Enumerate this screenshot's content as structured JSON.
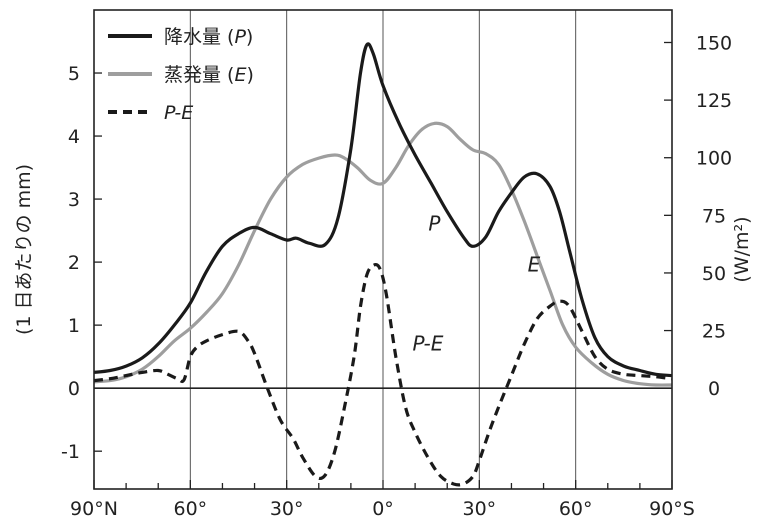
{
  "chart_data": {
    "type": "line",
    "xlabel": "",
    "ylabel_left": "(1 日あたりの mm)",
    "ylabel_right": "(W/m²)",
    "xlim": [
      -90,
      90
    ],
    "ylim_left": [
      -1.6,
      6.0
    ],
    "ylim_right": [
      -43.75,
      164.1
    ],
    "x_ticks": [
      -90,
      -60,
      -30,
      0,
      30,
      60,
      90
    ],
    "x_tick_labels": [
      "90°N",
      "60°",
      "30°",
      "0°",
      "30°",
      "60°",
      "90°S"
    ],
    "y_ticks_left": [
      -1,
      0,
      1,
      2,
      3,
      4,
      5
    ],
    "y_tick_labels_left": [
      "-1",
      "0",
      "1",
      "2",
      "3",
      "4",
      "5"
    ],
    "y_ticks_right": [
      0,
      25,
      50,
      75,
      100,
      125,
      150
    ],
    "y_tick_labels_right": [
      "0",
      "25",
      "50",
      "75",
      "100",
      "125",
      "150"
    ],
    "grid_vertical": [
      -60,
      -30,
      0,
      30,
      60
    ],
    "legend_position": "top-left",
    "series": [
      {
        "name": "降水量 (P)",
        "label_parts": [
          "降水量 (",
          "P",
          ")"
        ],
        "style": "solid",
        "color": "#1a1a1a",
        "annotation": "P",
        "annotation_at": [
          16,
          2.5
        ],
        "x": [
          -90,
          -85,
          -80,
          -75,
          -70,
          -65,
          -60,
          -55,
          -50,
          -45,
          -40,
          -35,
          -30,
          -27,
          -23,
          -18,
          -14,
          -10,
          -7,
          -5,
          -3,
          0,
          5,
          10,
          15,
          20,
          25,
          28,
          32,
          36,
          40,
          44,
          48,
          52,
          55,
          58,
          62,
          66,
          70,
          75,
          80,
          85,
          90
        ],
        "y": [
          0.25,
          0.28,
          0.35,
          0.48,
          0.7,
          1.0,
          1.35,
          1.85,
          2.25,
          2.45,
          2.55,
          2.45,
          2.35,
          2.38,
          2.3,
          2.28,
          2.7,
          3.8,
          5.0,
          5.45,
          5.3,
          4.8,
          4.2,
          3.7,
          3.25,
          2.8,
          2.4,
          2.25,
          2.4,
          2.8,
          3.1,
          3.35,
          3.4,
          3.2,
          2.8,
          2.2,
          1.4,
          0.8,
          0.5,
          0.35,
          0.28,
          0.22,
          0.2
        ]
      },
      {
        "name": "蒸発量 (E)",
        "label_parts": [
          "蒸発量 (",
          "E",
          ")"
        ],
        "style": "solid",
        "color": "#9e9e9e",
        "annotation": "E",
        "annotation_at": [
          47,
          1.85
        ],
        "x": [
          -90,
          -85,
          -80,
          -75,
          -70,
          -65,
          -60,
          -55,
          -50,
          -45,
          -40,
          -35,
          -30,
          -25,
          -20,
          -15,
          -12,
          -8,
          -4,
          0,
          4,
          8,
          12,
          16,
          20,
          24,
          28,
          32,
          36,
          40,
          44,
          48,
          52,
          56,
          60,
          65,
          70,
          75,
          80,
          85,
          90
        ],
        "y": [
          0.1,
          0.12,
          0.18,
          0.3,
          0.5,
          0.75,
          0.95,
          1.2,
          1.5,
          1.95,
          2.5,
          3.0,
          3.35,
          3.55,
          3.65,
          3.7,
          3.65,
          3.5,
          3.3,
          3.25,
          3.5,
          3.85,
          4.1,
          4.2,
          4.15,
          3.95,
          3.78,
          3.72,
          3.55,
          3.15,
          2.65,
          2.1,
          1.55,
          1.0,
          0.65,
          0.4,
          0.22,
          0.12,
          0.07,
          0.05,
          0.05
        ]
      },
      {
        "name": "P-E",
        "label_parts": [
          "",
          "P-E",
          ""
        ],
        "style": "dashed",
        "color": "#1a1a1a",
        "annotation": "P-E",
        "annotation_at": [
          14,
          0.6
        ],
        "x": [
          -90,
          -85,
          -80,
          -75,
          -70,
          -67,
          -64,
          -62,
          -60,
          -58,
          -55,
          -50,
          -45,
          -42,
          -40,
          -36,
          -32,
          -28,
          -25,
          -21,
          -18,
          -15,
          -12,
          -9,
          -7,
          -5,
          -3,
          -1,
          1,
          4,
          7,
          10,
          14,
          18,
          22,
          25,
          28,
          30,
          33,
          36,
          40,
          44,
          48,
          52,
          55,
          58,
          62,
          66,
          70,
          75,
          80,
          85,
          90
        ],
        "y": [
          0.12,
          0.15,
          0.2,
          0.25,
          0.28,
          0.22,
          0.15,
          0.13,
          0.5,
          0.65,
          0.75,
          0.85,
          0.9,
          0.75,
          0.55,
          0.0,
          -0.5,
          -0.8,
          -1.1,
          -1.4,
          -1.38,
          -1.0,
          -0.3,
          0.5,
          1.3,
          1.8,
          1.95,
          1.9,
          1.5,
          0.5,
          -0.3,
          -0.7,
          -1.1,
          -1.4,
          -1.52,
          -1.52,
          -1.4,
          -1.15,
          -0.7,
          -0.3,
          0.2,
          0.7,
          1.1,
          1.3,
          1.38,
          1.3,
          0.9,
          0.5,
          0.3,
          0.22,
          0.2,
          0.18,
          0.15
        ]
      }
    ]
  }
}
